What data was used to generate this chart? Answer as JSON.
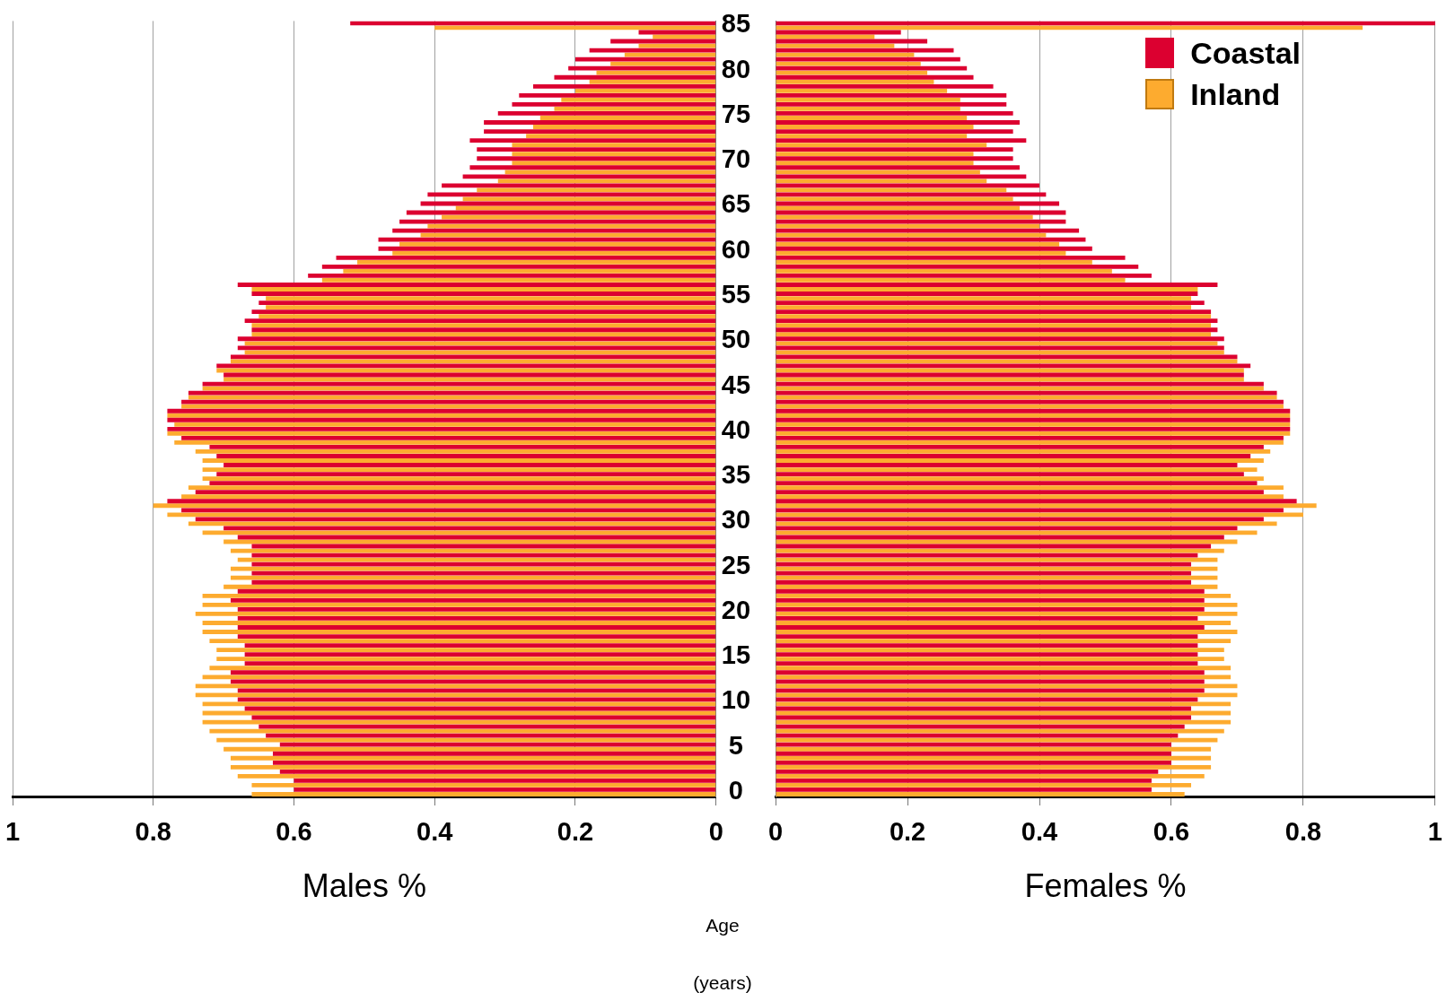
{
  "chart_data": [
    {
      "type": "bar",
      "orientation": "horizontal",
      "xlabel": "Males %",
      "ylabel": "Age (years)",
      "xlim": [
        1,
        0
      ],
      "xticks": [
        0,
        0.2,
        0.4,
        0.6,
        0.8,
        1
      ],
      "grid": "x",
      "categories": [
        "85",
        null,
        null,
        null,
        null,
        "80",
        null,
        null,
        null,
        null,
        "75",
        null,
        null,
        null,
        null,
        "70",
        null,
        null,
        null,
        null,
        "65",
        null,
        null,
        null,
        null,
        "60",
        null,
        null,
        null,
        null,
        "55",
        null,
        null,
        null,
        null,
        "50",
        null,
        null,
        null,
        null,
        "45",
        null,
        null,
        null,
        null,
        "40",
        null,
        null,
        null,
        null,
        "35",
        null,
        null,
        null,
        null,
        "30",
        null,
        null,
        null,
        null,
        "25",
        null,
        null,
        null,
        null,
        "20",
        null,
        null,
        null,
        null,
        "15",
        null,
        null,
        null,
        null,
        "10",
        null,
        null,
        null,
        null,
        "5",
        null,
        null,
        null,
        null,
        "0"
      ],
      "series": [
        {
          "color": "#dc0030",
          "values": [
            0.52,
            0.11,
            0.15,
            0.18,
            0.2,
            0.21,
            0.23,
            0.26,
            0.28,
            0.29,
            0.31,
            0.33,
            0.33,
            0.35,
            0.34,
            0.34,
            0.35,
            0.36,
            0.39,
            0.41,
            0.42,
            0.44,
            0.45,
            0.46,
            0.48,
            0.48,
            0.54,
            0.56,
            0.58,
            0.68,
            0.66,
            0.65,
            0.66,
            0.67,
            0.66,
            0.68,
            0.68,
            0.69,
            0.71,
            0.7,
            0.73,
            0.75,
            0.76,
            0.78,
            0.78,
            0.78,
            0.76,
            0.72,
            0.71,
            0.7,
            0.71,
            0.72,
            0.74,
            0.78,
            0.76,
            0.74,
            0.7,
            0.68,
            0.66,
            0.66,
            0.66,
            0.66,
            0.66,
            0.68,
            0.69,
            0.68,
            0.68,
            0.68,
            0.68,
            0.67,
            0.67,
            0.67,
            0.69,
            0.69,
            0.68,
            0.68,
            0.67,
            0.66,
            0.65,
            0.64,
            0.62,
            0.63,
            0.63,
            0.62,
            0.6,
            0.6
          ]
        },
        {
          "color": "#fdab2f",
          "values": [
            0.4,
            0.09,
            0.11,
            0.13,
            0.15,
            0.17,
            0.18,
            0.2,
            0.22,
            0.23,
            0.25,
            0.26,
            0.27,
            0.29,
            0.29,
            0.29,
            0.3,
            0.31,
            0.34,
            0.36,
            0.37,
            0.39,
            0.41,
            0.42,
            0.45,
            0.46,
            0.51,
            0.53,
            0.56,
            0.66,
            0.64,
            0.64,
            0.65,
            0.66,
            0.66,
            0.67,
            0.67,
            0.69,
            0.71,
            0.7,
            0.73,
            0.75,
            0.76,
            0.78,
            0.77,
            0.78,
            0.77,
            0.74,
            0.73,
            0.73,
            0.73,
            0.75,
            0.76,
            0.8,
            0.78,
            0.75,
            0.73,
            0.7,
            0.69,
            0.68,
            0.69,
            0.69,
            0.7,
            0.73,
            0.73,
            0.74,
            0.73,
            0.73,
            0.72,
            0.71,
            0.71,
            0.72,
            0.73,
            0.74,
            0.74,
            0.73,
            0.73,
            0.73,
            0.72,
            0.71,
            0.7,
            0.69,
            0.69,
            0.68,
            0.66,
            0.66
          ]
        }
      ]
    },
    {
      "type": "bar",
      "orientation": "horizontal",
      "xlabel": "Females %",
      "xlim": [
        0,
        1
      ],
      "xticks": [
        0,
        0.2,
        0.4,
        0.6,
        0.8,
        1
      ],
      "grid": "x",
      "legend": "top right",
      "tick_labels": "x",
      "categories": [
        "85",
        null,
        null,
        null,
        null,
        "80",
        null,
        null,
        null,
        null,
        "75",
        null,
        null,
        null,
        null,
        "70",
        null,
        null,
        null,
        null,
        "65",
        null,
        null,
        null,
        null,
        "60",
        null,
        null,
        null,
        null,
        "55",
        null,
        null,
        null,
        null,
        "50",
        null,
        null,
        null,
        null,
        "45",
        null,
        null,
        null,
        null,
        "40",
        null,
        null,
        null,
        null,
        "35",
        null,
        null,
        null,
        null,
        "30",
        null,
        null,
        null,
        null,
        "25",
        null,
        null,
        null,
        null,
        "20",
        null,
        null,
        null,
        null,
        "15",
        null,
        null,
        null,
        null,
        "10",
        null,
        null,
        null,
        null,
        "5",
        null,
        null,
        null,
        null,
        "0"
      ],
      "series": [
        {
          "name": "Coastal",
          "color": "#dc0030",
          "values": [
            1.0,
            0.19,
            0.23,
            0.27,
            0.28,
            0.29,
            0.3,
            0.33,
            0.35,
            0.35,
            0.36,
            0.37,
            0.36,
            0.38,
            0.36,
            0.36,
            0.37,
            0.38,
            0.4,
            0.41,
            0.43,
            0.44,
            0.44,
            0.46,
            0.47,
            0.48,
            0.53,
            0.55,
            0.57,
            0.67,
            0.64,
            0.65,
            0.66,
            0.67,
            0.67,
            0.68,
            0.68,
            0.7,
            0.72,
            0.71,
            0.74,
            0.76,
            0.77,
            0.78,
            0.78,
            0.78,
            0.77,
            0.74,
            0.72,
            0.7,
            0.71,
            0.73,
            0.74,
            0.79,
            0.77,
            0.74,
            0.7,
            0.68,
            0.66,
            0.64,
            0.63,
            0.63,
            0.63,
            0.65,
            0.65,
            0.65,
            0.64,
            0.65,
            0.64,
            0.64,
            0.64,
            0.64,
            0.65,
            0.65,
            0.65,
            0.64,
            0.63,
            0.63,
            0.62,
            0.61,
            0.6,
            0.6,
            0.6,
            0.58,
            0.57,
            0.57
          ]
        },
        {
          "name": "Inland",
          "color": "#fdab2f",
          "values": [
            0.89,
            0.15,
            0.18,
            0.21,
            0.22,
            0.23,
            0.24,
            0.26,
            0.28,
            0.28,
            0.29,
            0.3,
            0.29,
            0.32,
            0.3,
            0.3,
            0.31,
            0.32,
            0.35,
            0.36,
            0.37,
            0.39,
            0.4,
            0.41,
            0.43,
            0.44,
            0.48,
            0.51,
            0.53,
            0.64,
            0.63,
            0.63,
            0.66,
            0.66,
            0.66,
            0.67,
            0.68,
            0.7,
            0.71,
            0.71,
            0.74,
            0.76,
            0.77,
            0.78,
            0.78,
            0.78,
            0.77,
            0.75,
            0.74,
            0.73,
            0.74,
            0.77,
            0.77,
            0.82,
            0.8,
            0.76,
            0.73,
            0.7,
            0.68,
            0.67,
            0.67,
            0.67,
            0.67,
            0.69,
            0.7,
            0.7,
            0.69,
            0.7,
            0.69,
            0.68,
            0.68,
            0.69,
            0.69,
            0.7,
            0.7,
            0.69,
            0.69,
            0.69,
            0.68,
            0.67,
            0.66,
            0.66,
            0.66,
            0.65,
            0.63,
            0.62
          ]
        }
      ]
    }
  ]
}
